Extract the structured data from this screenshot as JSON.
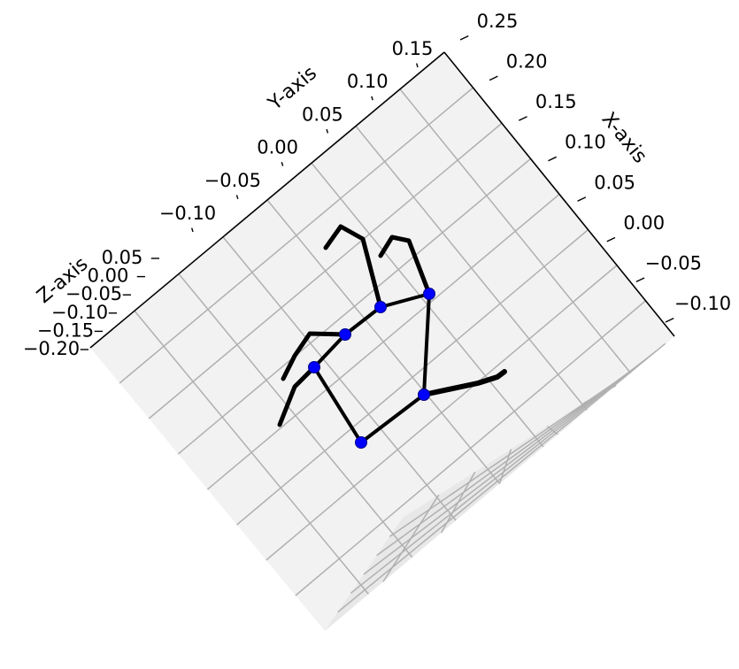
{
  "chart_data": {
    "type": "3d-line",
    "axes": {
      "x": {
        "label": "X-axis",
        "ticks": [
          "−0.10",
          "−0.05",
          "0.00",
          "0.05",
          "0.10",
          "0.15",
          "0.20",
          "0.25"
        ],
        "range": [
          -0.1,
          0.25
        ]
      },
      "y": {
        "label": "Y-axis",
        "ticks": [
          "−0.10",
          "−0.05",
          "0.00",
          "0.05",
          "0.10",
          "0.15"
        ],
        "range": [
          -0.1,
          0.15
        ]
      },
      "z": {
        "label": "Z-axis",
        "ticks": [
          "−0.20",
          "−0.15",
          "−0.10",
          "−0.05",
          "0.00",
          "0.05"
        ],
        "range": [
          -0.2,
          0.05
        ]
      }
    },
    "grid": true,
    "marker_color": "#0000ff",
    "line_color": "#000000",
    "pane_color": "#f2f2f2",
    "grid_color": "#b0b0b0"
  }
}
